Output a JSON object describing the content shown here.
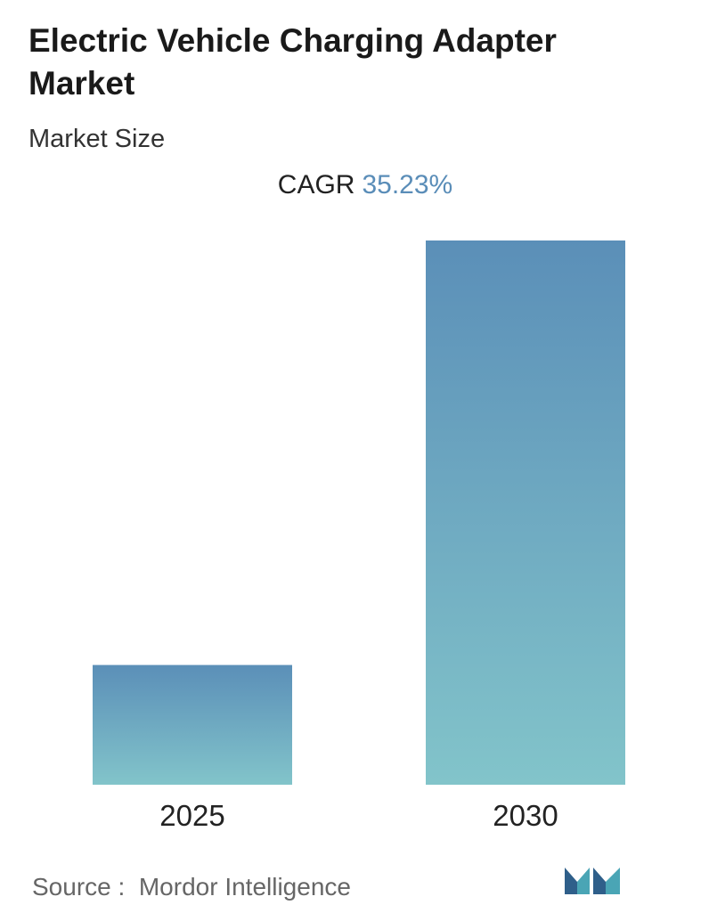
{
  "header": {
    "title": "Electric Vehicle Charging Adapter Market",
    "subtitle": "Market Size",
    "cagr_label": "CAGR",
    "cagr_value": "35.23%"
  },
  "chart_data": {
    "type": "bar",
    "categories": [
      "2025",
      "2030"
    ],
    "values": [
      0.22,
      1.0
    ],
    "ylim": [
      0,
      1.0
    ],
    "grid": false,
    "legend": "none",
    "colors": {
      "bar_top": "#5b8fb8",
      "bar_bottom": "#82c4ca"
    }
  },
  "footer": {
    "source_label": "Source :",
    "source_name": "Mordor Intelligence",
    "logo_icon": "mordor-intelligence-logo-icon"
  }
}
